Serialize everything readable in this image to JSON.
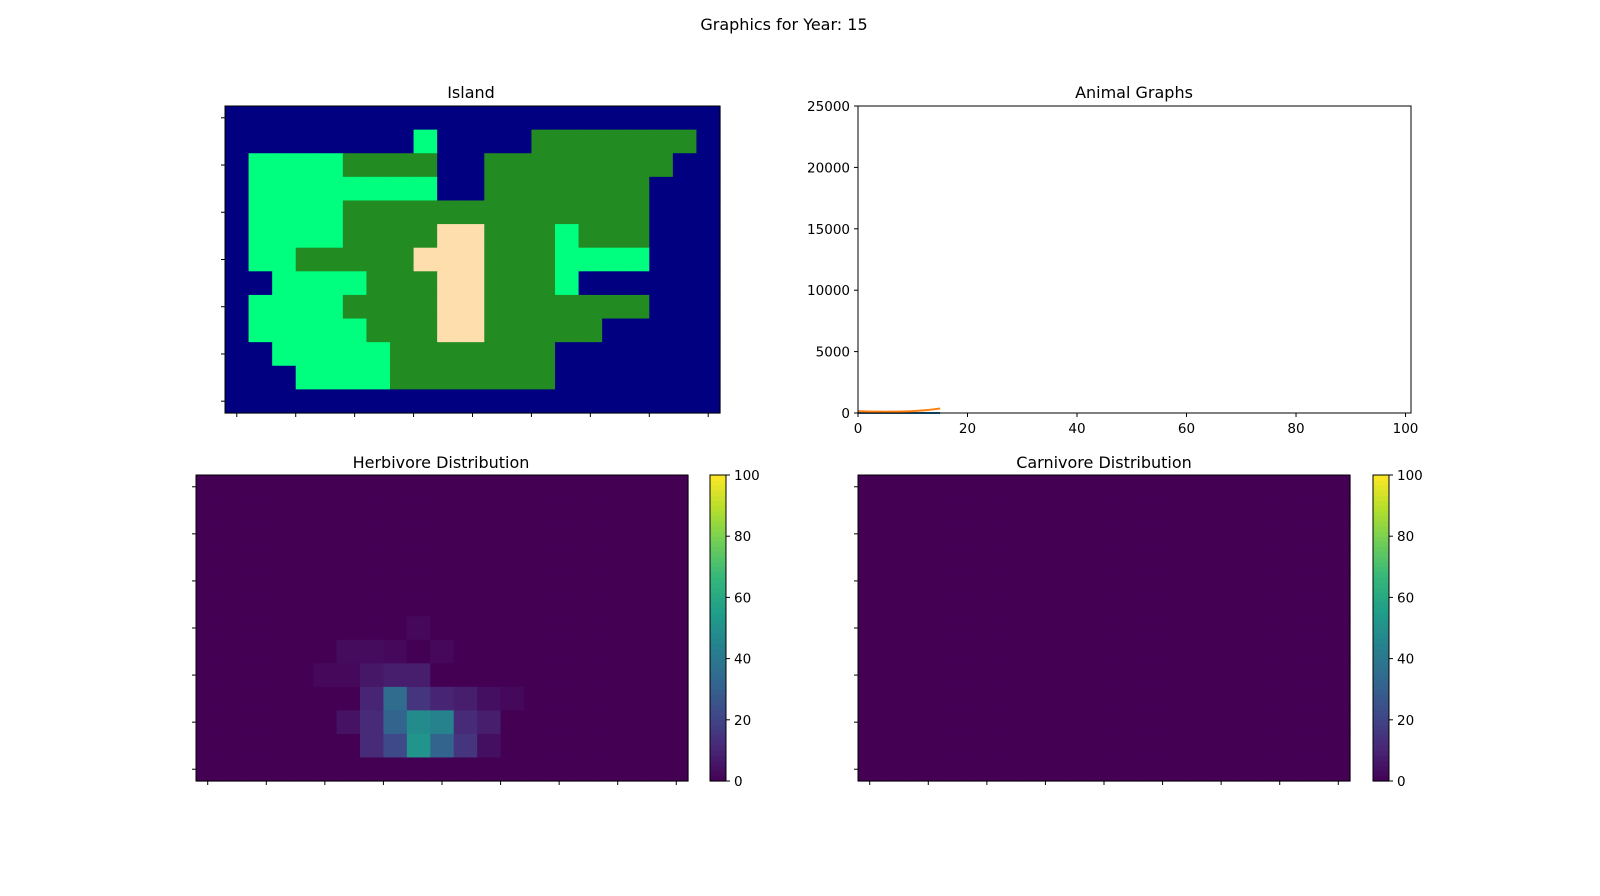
{
  "figure": {
    "suptitle": "Graphics for Year: 15"
  },
  "chart_data": [
    {
      "type": "heatmap",
      "title": "Island",
      "colors": {
        "W": "#000080",
        "D": "#ffdead",
        "L": "#228b22",
        "H": "#00ff7f"
      },
      "grid": [
        "WWWWWWWWWWWWWWWWWWWWW",
        "WWWWWWWWHWWWWLLLLLLLW",
        "WHHHHLLLLWWLLLLLLLLWW",
        "WHHHHHHHHWWLLLLLLLWWW",
        "WHHHHLLLLLLLLLLLLLWWW",
        "WHHHHLLLLDDLLLHLLLWWW",
        "WHHLLLLLDDDLLLHHHHWWW",
        "WWHHHHLLLDDLLLHWWWWWW",
        "WHHHHLLLLDDLLLLLLLWWW",
        "WHHHHHLLLDDLLLLLWWWWW",
        "WWHHHHHLLLLLLLWWWWWWW",
        "WWWHHHHLLLLLLLWWWWWWW",
        "WWWWWWWWWWWWWWWWWWWWW"
      ]
    },
    {
      "type": "line",
      "title": "Animal Graphs",
      "xlim": [
        0,
        101
      ],
      "ylim": [
        0,
        25000
      ],
      "xticks": [
        0,
        20,
        40,
        60,
        80,
        100
      ],
      "yticks": [
        0,
        5000,
        10000,
        15000,
        20000,
        25000
      ],
      "series": [
        {
          "color": "#1f77b4",
          "x": [
            0,
            1,
            2,
            3,
            4,
            5,
            6,
            7,
            8,
            9,
            10,
            11,
            12,
            13,
            14,
            15
          ],
          "y": [
            0,
            0,
            0,
            0,
            0,
            0,
            0,
            0,
            0,
            0,
            0,
            0,
            0,
            0,
            0,
            0
          ]
        },
        {
          "color": "#ff7f0e",
          "x": [
            0,
            1,
            2,
            3,
            4,
            5,
            6,
            7,
            8,
            9,
            10,
            11,
            12,
            13,
            14,
            15
          ],
          "y": [
            150,
            135,
            120,
            112,
            108,
            106,
            108,
            112,
            120,
            135,
            155,
            180,
            215,
            260,
            310,
            370
          ]
        }
      ]
    },
    {
      "type": "heatmap",
      "title": "Herbivore Distribution",
      "vmin": 0,
      "vmax": 100,
      "colorbar_ticks": [
        0,
        20,
        40,
        60,
        80,
        100
      ],
      "values": [
        [
          0,
          0,
          0,
          0,
          0,
          0,
          0,
          0,
          0,
          0,
          0,
          0,
          0,
          0,
          0,
          0,
          0,
          0,
          0,
          0,
          0
        ],
        [
          0,
          0,
          0,
          0,
          0,
          0,
          0,
          0,
          0,
          0,
          0,
          0,
          0,
          0,
          0,
          0,
          0,
          0,
          0,
          0,
          0
        ],
        [
          0,
          0,
          0,
          0,
          0,
          0,
          0,
          0,
          0,
          0,
          0,
          0,
          0,
          0,
          0,
          0,
          0,
          0,
          0,
          0,
          0
        ],
        [
          0,
          0,
          0,
          0,
          0,
          0,
          0,
          0,
          0,
          0,
          0,
          0,
          0,
          0,
          0,
          0,
          0,
          0,
          0,
          0,
          0
        ],
        [
          0,
          0,
          0,
          0,
          0,
          0,
          0,
          0,
          0,
          0,
          0,
          0,
          0,
          0,
          0,
          0,
          0,
          0,
          0,
          0,
          0
        ],
        [
          0,
          0,
          0,
          0,
          0,
          0,
          0,
          0,
          0,
          0,
          0,
          0,
          0,
          0,
          0,
          0,
          0,
          0,
          0,
          0,
          0
        ],
        [
          0,
          0,
          0,
          0,
          0,
          0,
          0,
          0,
          0,
          2,
          0,
          0,
          0,
          0,
          0,
          0,
          0,
          0,
          0,
          0,
          0
        ],
        [
          0,
          0,
          0,
          0,
          0,
          0,
          3,
          3,
          2,
          0,
          2,
          0,
          0,
          0,
          0,
          0,
          0,
          0,
          0,
          0,
          0
        ],
        [
          0,
          0,
          0,
          0,
          0,
          2,
          2,
          6,
          8,
          8,
          0,
          0,
          0,
          0,
          0,
          0,
          0,
          0,
          0,
          0,
          0
        ],
        [
          0,
          0,
          0,
          0,
          0,
          0,
          0,
          10,
          35,
          15,
          10,
          8,
          4,
          2,
          0,
          0,
          0,
          0,
          0,
          0,
          0
        ],
        [
          0,
          0,
          0,
          0,
          0,
          0,
          5,
          12,
          32,
          48,
          45,
          12,
          8,
          0,
          0,
          0,
          0,
          0,
          0,
          0,
          0
        ],
        [
          0,
          0,
          0,
          0,
          0,
          0,
          0,
          12,
          22,
          52,
          32,
          15,
          4,
          0,
          0,
          0,
          0,
          0,
          0,
          0,
          0
        ],
        [
          0,
          0,
          0,
          0,
          0,
          0,
          0,
          0,
          0,
          0,
          0,
          0,
          0,
          0,
          0,
          0,
          0,
          0,
          0,
          0,
          0
        ]
      ]
    },
    {
      "type": "heatmap",
      "title": "Carnivore Distribution",
      "vmin": 0,
      "vmax": 100,
      "colorbar_ticks": [
        0,
        20,
        40,
        60,
        80,
        100
      ],
      "values": "all-zero"
    }
  ]
}
